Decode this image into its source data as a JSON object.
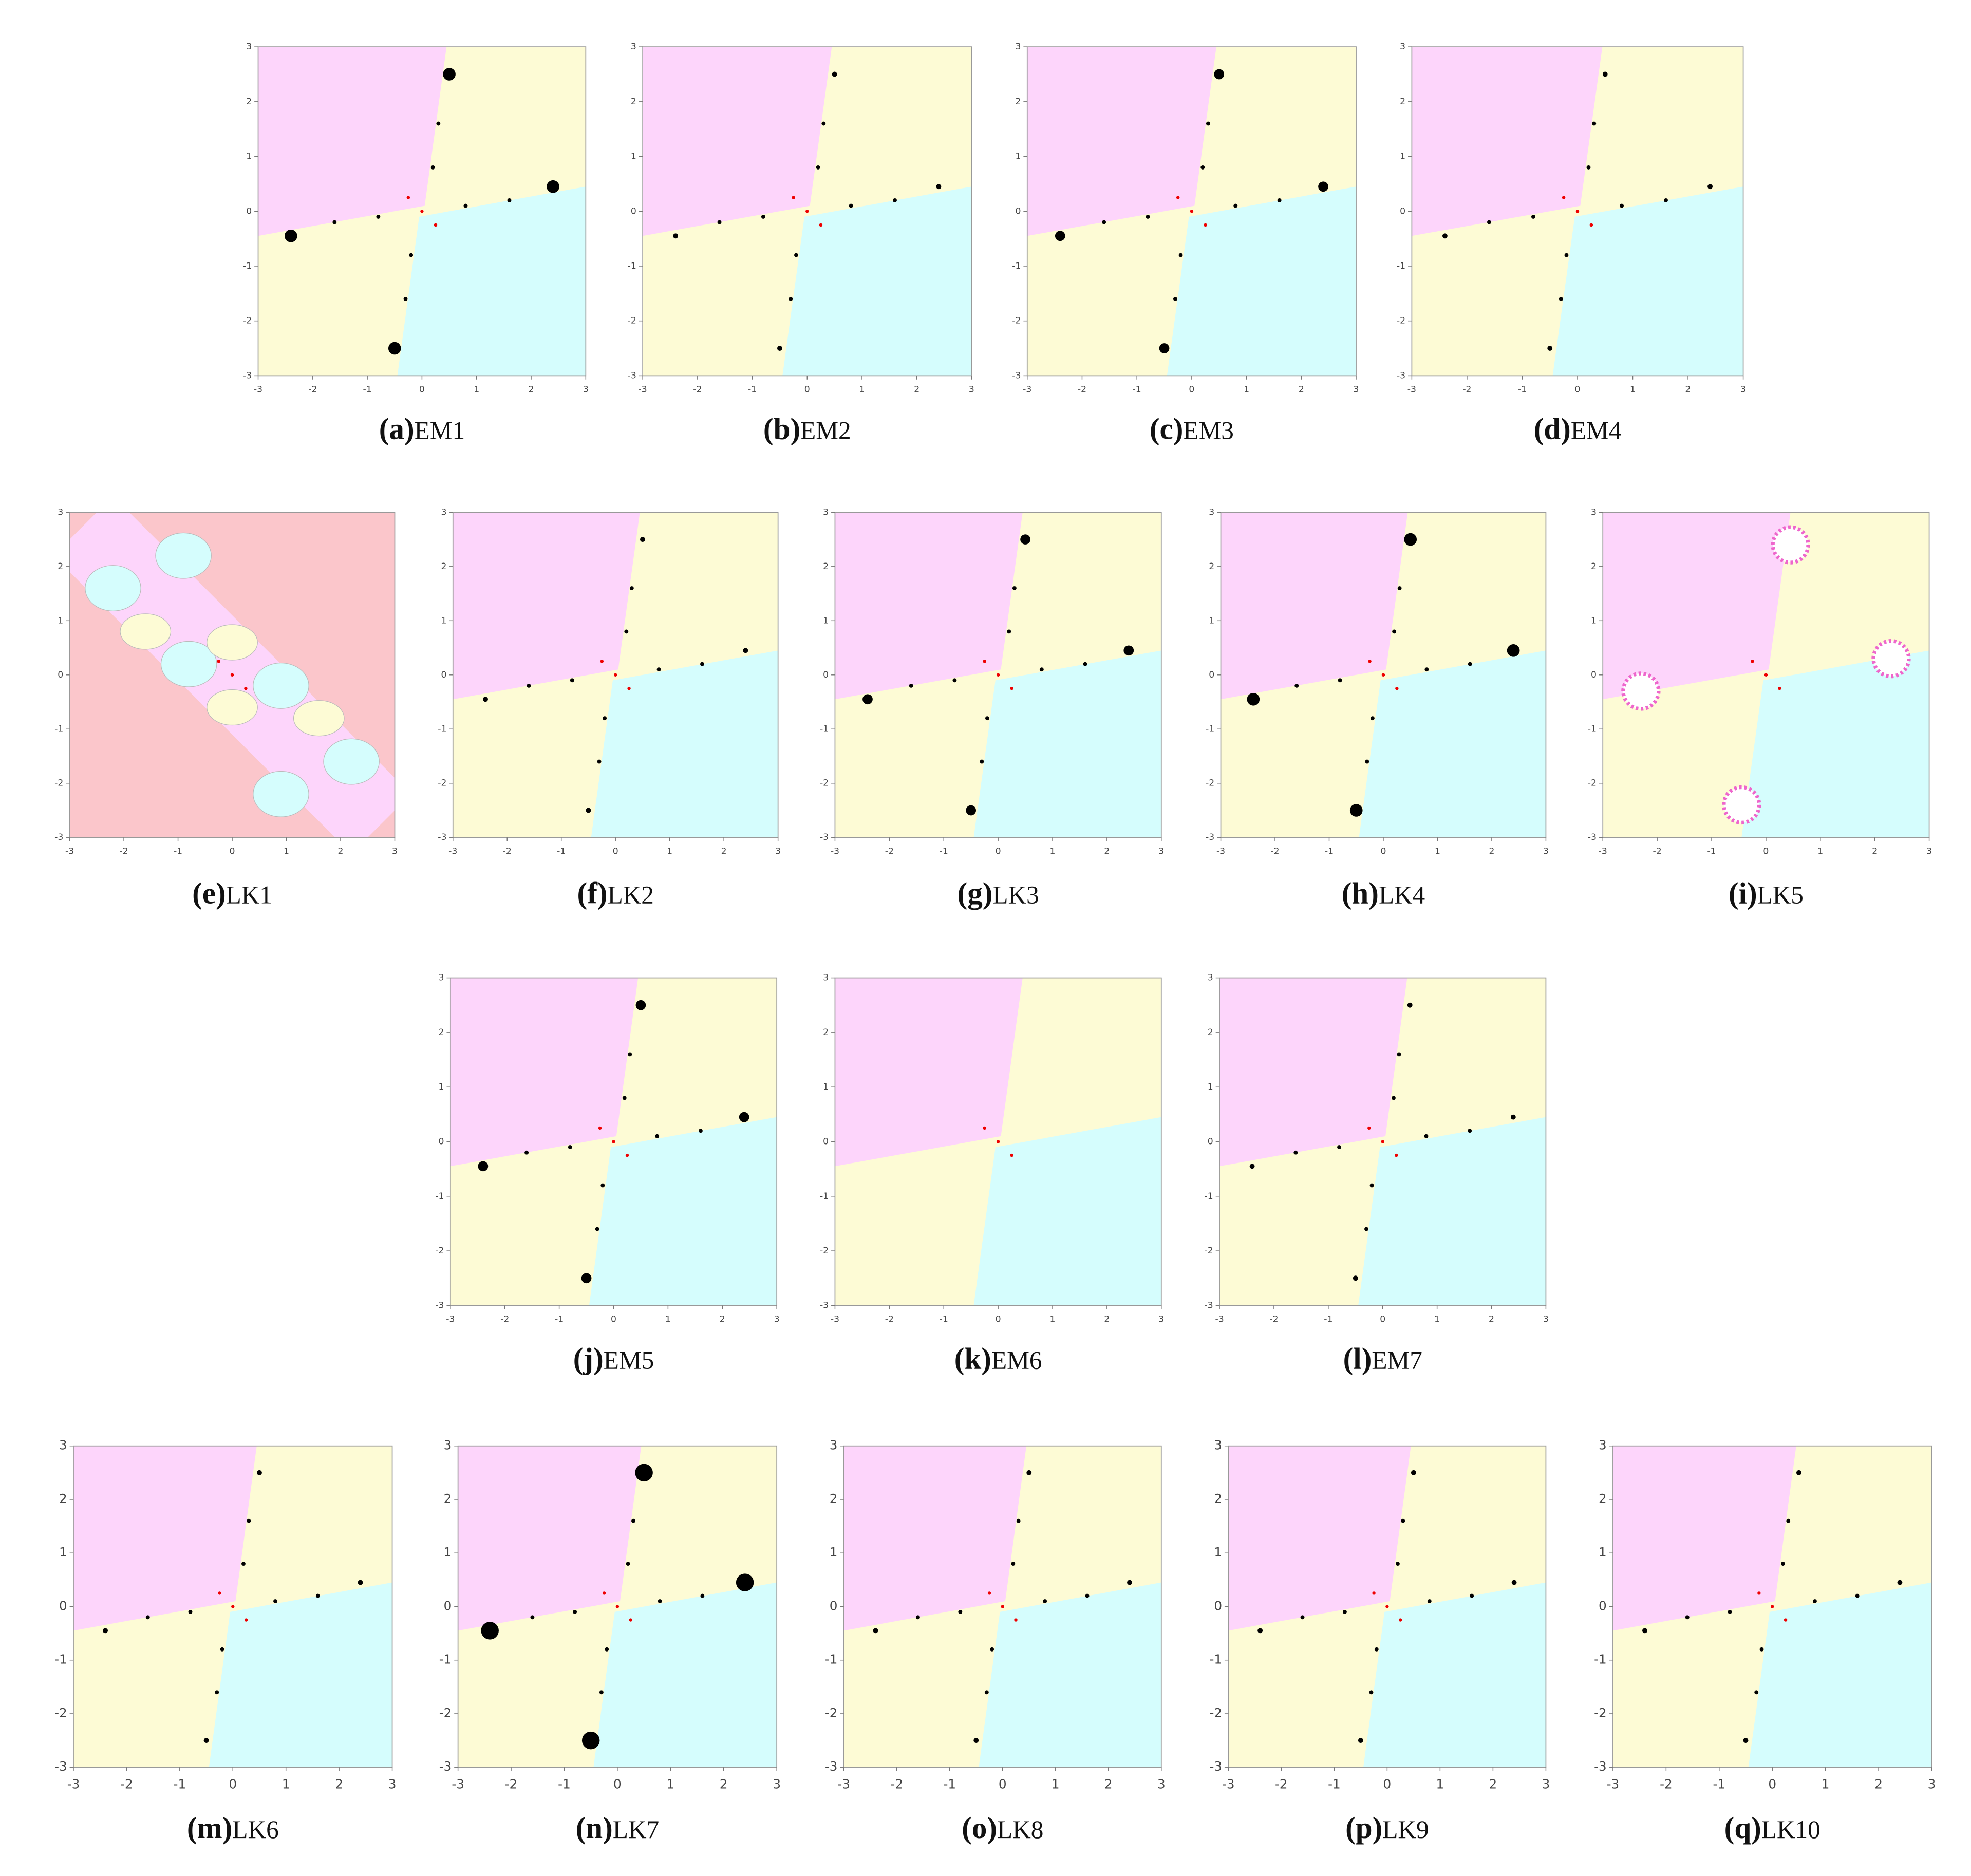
{
  "panels": [
    {
      "letter": "(a)",
      "label": "EM1",
      "xlim": [
        -3,
        3
      ],
      "ylim": [
        -3,
        3
      ],
      "xticks": [
        -3,
        -2,
        -1,
        0,
        1,
        2,
        3
      ],
      "yticks": [
        -3,
        -2,
        -1,
        0,
        1,
        2,
        3
      ]
    },
    {
      "letter": "(b)",
      "label": "EM2",
      "xlim": [
        -3,
        3
      ],
      "ylim": [
        -3,
        3
      ],
      "xticks": [
        -3,
        -2,
        -1,
        0,
        1,
        2,
        3
      ],
      "yticks": [
        -3,
        -2,
        -1,
        0,
        1,
        2,
        3
      ]
    },
    {
      "letter": "(c)",
      "label": "EM3",
      "xlim": [
        -3,
        3
      ],
      "ylim": [
        -3,
        3
      ],
      "xticks": [
        -3,
        -2,
        -1,
        0,
        1,
        2,
        3
      ],
      "yticks": [
        -3,
        -2,
        -1,
        0,
        1,
        2,
        3
      ]
    },
    {
      "letter": "(d)",
      "label": "EM4",
      "xlim": [
        -3,
        3
      ],
      "ylim": [
        -3,
        3
      ],
      "xticks": [
        -3,
        -2,
        -1,
        0,
        1,
        2,
        3
      ],
      "yticks": [
        -3,
        -2,
        -1,
        0,
        1,
        2,
        3
      ]
    },
    {
      "letter": "(e)",
      "label": "LK1",
      "xlim": [
        -3,
        3
      ],
      "ylim": [
        -3,
        3
      ],
      "xticks": [
        -3,
        -2,
        -1,
        0,
        1,
        2,
        3
      ],
      "yticks": [
        -3,
        -2,
        -1,
        0,
        1,
        2,
        3
      ]
    },
    {
      "letter": "(f)",
      "label": "LK2",
      "xlim": [
        -3,
        3
      ],
      "ylim": [
        -3,
        3
      ],
      "xticks": [
        -3,
        -2,
        -1,
        0,
        1,
        2,
        3
      ],
      "yticks": [
        -3,
        -2,
        -1,
        0,
        1,
        2,
        3
      ]
    },
    {
      "letter": "(g)",
      "label": "LK3",
      "xlim": [
        -3,
        3
      ],
      "ylim": [
        -3,
        3
      ],
      "xticks": [
        -3,
        -2,
        -1,
        0,
        1,
        2,
        3
      ],
      "yticks": [
        -3,
        -2,
        -1,
        0,
        1,
        2,
        3
      ]
    },
    {
      "letter": "(h)",
      "label": "LK4",
      "xlim": [
        -3,
        3
      ],
      "ylim": [
        -3,
        3
      ],
      "xticks": [
        -3,
        -2,
        -1,
        0,
        1,
        2,
        3
      ],
      "yticks": [
        -3,
        -2,
        -1,
        0,
        1,
        2,
        3
      ]
    },
    {
      "letter": "(i)",
      "label": "LK5",
      "xlim": [
        -3,
        3
      ],
      "ylim": [
        -3,
        3
      ],
      "xticks": [
        -3,
        -2,
        -1,
        0,
        1,
        2,
        3
      ],
      "yticks": [
        -3,
        -2,
        -1,
        0,
        1,
        2,
        3
      ]
    },
    {
      "letter": "(j)",
      "label": "EM5",
      "xlim": [
        -3,
        3
      ],
      "ylim": [
        -3,
        3
      ],
      "xticks": [
        -3,
        -2,
        -1,
        0,
        1,
        2,
        3
      ],
      "yticks": [
        -3,
        -2,
        -1,
        0,
        1,
        2,
        3
      ]
    },
    {
      "letter": "(k)",
      "label": "EM6",
      "xlim": [
        -3,
        3
      ],
      "ylim": [
        -3,
        3
      ],
      "xticks": [
        -3,
        -2,
        -1,
        0,
        1,
        2,
        3
      ],
      "yticks": [
        -3,
        -2,
        -1,
        0,
        1,
        2,
        3
      ]
    },
    {
      "letter": "(l)",
      "label": "EM7",
      "xlim": [
        -3,
        3
      ],
      "ylim": [
        -3,
        3
      ],
      "xticks": [
        -3,
        -2,
        -1,
        0,
        1,
        2,
        3
      ],
      "yticks": [
        -3,
        -2,
        -1,
        0,
        1,
        2,
        3
      ]
    },
    {
      "letter": "(m)",
      "label": "LK6",
      "xlim": [
        -3,
        3
      ],
      "ylim": [
        -3,
        3
      ],
      "xticks": [
        -3,
        -2,
        -1,
        0,
        1,
        2,
        3
      ],
      "yticks": [
        -3,
        -2,
        -1,
        0,
        1,
        2,
        3
      ]
    },
    {
      "letter": "(n)",
      "label": "LK7",
      "xlim": [
        -3,
        3
      ],
      "ylim": [
        -3,
        3
      ],
      "xticks": [
        -3,
        -2,
        -1,
        0,
        1,
        2,
        3
      ],
      "yticks": [
        -3,
        -2,
        -1,
        0,
        1,
        2,
        3
      ]
    },
    {
      "letter": "(o)",
      "label": "LK8",
      "xlim": [
        -3,
        3
      ],
      "ylim": [
        -3,
        3
      ],
      "xticks": [
        -3,
        -2,
        -1,
        0,
        1,
        2,
        3
      ],
      "yticks": [
        -3,
        -2,
        -1,
        0,
        1,
        2,
        3
      ]
    },
    {
      "letter": "(p)",
      "label": "LK9",
      "xlim": [
        -3,
        3
      ],
      "ylim": [
        -3,
        3
      ],
      "xticks": [
        -3,
        -2,
        -1,
        0,
        1,
        2,
        3
      ],
      "yticks": [
        -3,
        -2,
        -1,
        0,
        1,
        2,
        3
      ]
    },
    {
      "letter": "(q)",
      "label": "LK10",
      "xlim": [
        -3,
        3
      ],
      "ylim": [
        -3,
        3
      ],
      "xticks": [
        -3,
        -2,
        -1,
        0,
        1,
        2,
        3
      ],
      "yticks": [
        -3,
        -2,
        -1,
        0,
        1,
        2,
        3
      ]
    }
  ]
}
